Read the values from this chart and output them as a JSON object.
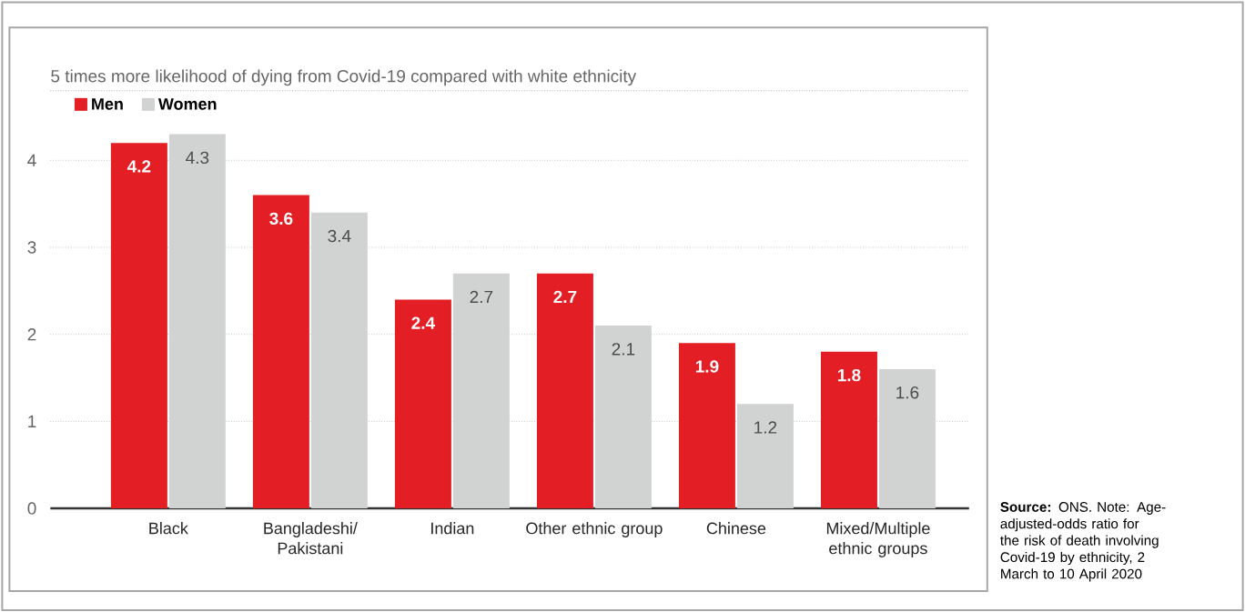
{
  "chart_data": {
    "type": "bar",
    "title": "5 times more likelihood of dying from Covid-19 compared with white ethnicity",
    "categories": [
      "Black",
      "Bangladeshi/ Pakistani",
      "Indian",
      "Other ethnic group",
      "Chinese",
      "Mixed/Multiple ethnic groups"
    ],
    "series": [
      {
        "name": "Men",
        "color": "#e31e24",
        "values": [
          4.2,
          3.6,
          2.4,
          2.7,
          1.9,
          1.8
        ]
      },
      {
        "name": "Women",
        "color": "#d1d3d2",
        "values": [
          4.3,
          3.4,
          2.7,
          2.1,
          1.2,
          1.6
        ]
      }
    ],
    "ylim": [
      0,
      4.8
    ],
    "yticks": [
      0,
      1,
      2,
      3,
      4
    ],
    "grid": "y",
    "legend": "top left",
    "data_labels": true,
    "annotations": [
      "**Source:** ONS. Note: Age-adjusted-odds ratio for the risk of death involving Covid-19 by ethnicity, 2 March to 10 April 2020"
    ]
  }
}
